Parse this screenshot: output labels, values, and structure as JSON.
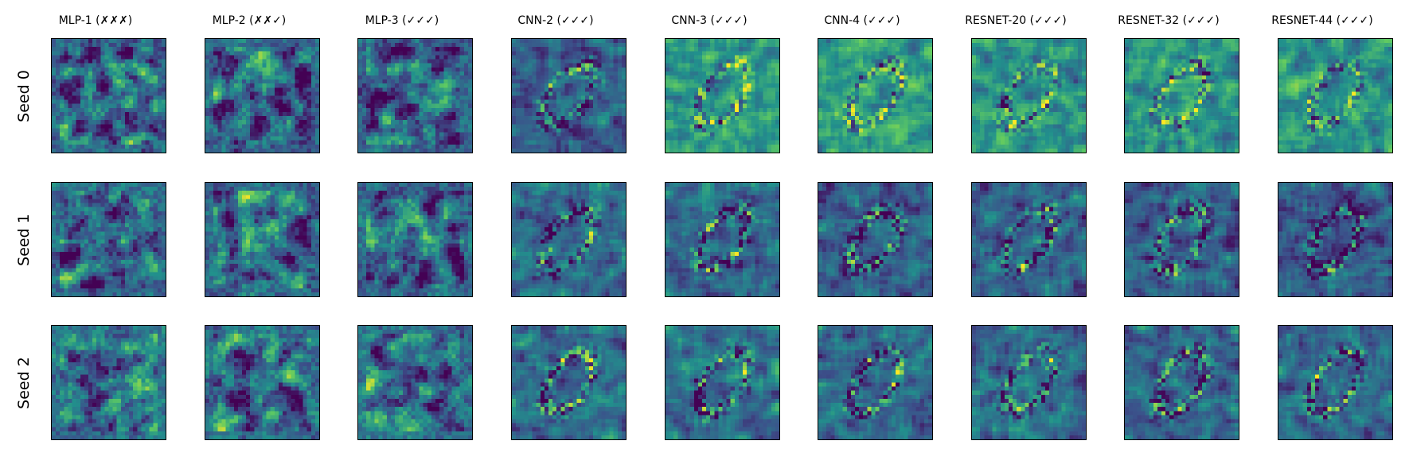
{
  "figure": {
    "column_titles": [
      "MLP-1 (✗✗✗)",
      "MLP-2 (✗✗✓)",
      "MLP-3 (✓✓✓)",
      "CNN-2 (✓✓✓)",
      "CNN-3 (✓✓✓)",
      "CNN-4 (✓✓✓)",
      "RESNET-20 (✓✓✓)",
      "RESNET-32 (✓✓✓)",
      "RESNET-44 (✓✓✓)"
    ],
    "row_labels": [
      "Seed 0",
      "Seed 1",
      "Seed 2"
    ],
    "colormap": "viridis",
    "colors": {
      "frame": "#000000",
      "low": "#440154",
      "mid": "#21918c",
      "high": "#fde725"
    }
  }
}
